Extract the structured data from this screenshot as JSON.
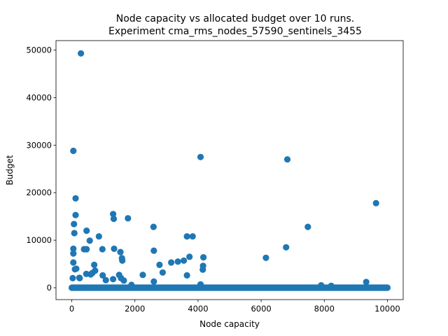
{
  "chart_data": {
    "type": "scatter",
    "title_line1": "Node capacity vs allocated budget over 10 runs.",
    "title_line2": "Experiment cma_rms_nodes_57590_sentinels_3455",
    "xlabel": "Node capacity",
    "ylabel": "Budget",
    "xlim": [
      -500,
      10500
    ],
    "ylim": [
      -2500,
      52000
    ],
    "x_ticks": [
      0,
      2000,
      4000,
      6000,
      8000,
      10000
    ],
    "y_ticks": [
      0,
      10000,
      20000,
      30000,
      40000,
      50000
    ],
    "x_tick_labels": [
      "0",
      "2000",
      "4000",
      "6000",
      "8000",
      "10000"
    ],
    "y_tick_labels": [
      "0",
      "10000",
      "20000",
      "30000",
      "40000",
      "50000"
    ],
    "grid": false,
    "marker_color": "#1f77b4",
    "baseline_band": {
      "x_start": 0,
      "x_end": 10000,
      "y": 0
    },
    "series": [
      {
        "x": [
          290,
          50,
          4080,
          6830,
          120,
          9640,
          120,
          1310,
          1330,
          1780,
          70,
          2590,
          80,
          7480,
          470,
          860,
          3650,
          3830,
          4170,
          570,
          1340,
          50,
          390,
          470,
          970,
          2600,
          1540,
          6790,
          3730,
          50,
          4160,
          1590,
          1600,
          6150,
          50,
          710,
          3150,
          3360,
          740,
          4150,
          3550,
          2780,
          140,
          100,
          650,
          3650,
          2880,
          600,
          250,
          460,
          2250,
          980,
          1500,
          240,
          1560,
          1310,
          30,
          1080,
          1650,
          2600,
          4080,
          7900,
          9330,
          8220,
          1890
        ],
        "y": [
          49300,
          28800,
          27500,
          27000,
          18800,
          17800,
          15300,
          15500,
          14500,
          14600,
          13400,
          12800,
          11500,
          12800,
          12000,
          10800,
          10800,
          10800,
          6400,
          9900,
          8200,
          8200,
          8100,
          8100,
          8100,
          7800,
          7500,
          8500,
          6500,
          7200,
          4600,
          6200,
          5700,
          6300,
          5300,
          4800,
          5300,
          5500,
          3600,
          3800,
          5700,
          4800,
          4000,
          3900,
          3100,
          2600,
          3200,
          2800,
          2000,
          2900,
          2700,
          2600,
          2700,
          2100,
          2000,
          1800,
          2000,
          1600,
          1500,
          1300,
          700,
          500,
          1200,
          400,
          600
        ]
      }
    ]
  }
}
